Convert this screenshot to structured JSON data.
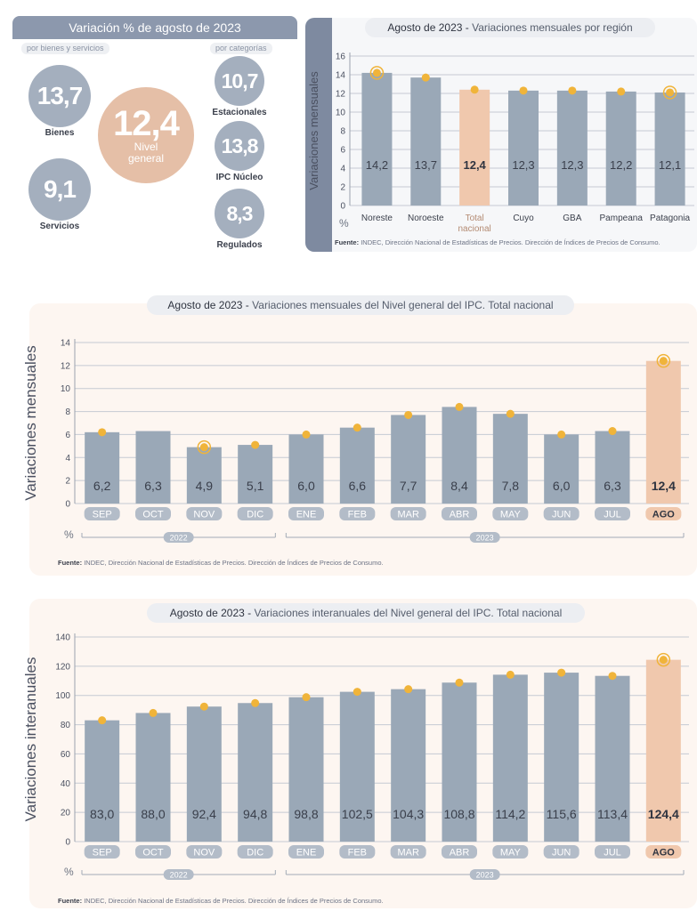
{
  "summary": {
    "title": "Variación % de agosto de 2023",
    "left_pill": "por bienes y servicios",
    "right_pill": "por categorías",
    "bienes": {
      "value": "13,7",
      "label": "Bienes"
    },
    "servicios": {
      "value": "9,1",
      "label": "Servicios"
    },
    "nivel_general": {
      "value": "12,4",
      "label_line1": "Nivel",
      "label_line2": "general"
    },
    "estacionales": {
      "value": "10,7",
      "label": "Estacionales"
    },
    "ipc_nucleo": {
      "value": "13,8",
      "label": "IPC Núcleo"
    },
    "regulados": {
      "value": "8,3",
      "label": "Regulados"
    },
    "colors": {
      "grey_circle": "#a4afbe",
      "highlight_circle": "#e5bfa7"
    }
  },
  "source_text": {
    "label": "Fuente:",
    "text": "INDEC, Dirección Nacional de Estadísticas de Precios. Dirección de Índices de Precios de Consumo."
  },
  "chart_data": [
    {
      "type": "bar",
      "title_bold": "Agosto de 2023 -",
      "title": "Variaciones mensuales por región",
      "ylabel": "Variaciones  mensuales",
      "unit": "%",
      "ylim": [
        0,
        16
      ],
      "yticks": [
        0,
        2,
        4,
        6,
        8,
        10,
        12,
        14,
        16
      ],
      "categories": [
        "Noreste",
        "Noroeste",
        "Total nacional",
        "Cuyo",
        "GBA",
        "Pampeana",
        "Patagonia"
      ],
      "values": [
        14.2,
        13.7,
        12.4,
        12.3,
        12.3,
        12.2,
        12.1
      ],
      "value_labels": [
        "14,2",
        "13,7",
        "12,4",
        "12,3",
        "12,3",
        "12,2",
        "12,1"
      ],
      "highlight_index": 2,
      "ringed_indices": [
        0,
        6
      ],
      "grid": true,
      "colors": {
        "bar": "#9aa8b7",
        "highlight": "#f0c8ad",
        "marker": "#f0b43a"
      }
    },
    {
      "type": "bar",
      "title_bold": "Agosto de 2023 -",
      "title": "Variaciones mensuales del Nivel general del IPC. Total nacional",
      "ylabel": "Variaciones mensuales",
      "unit": "%",
      "ylim": [
        0,
        14
      ],
      "yticks": [
        0,
        2,
        4,
        6,
        8,
        10,
        12,
        14
      ],
      "categories": [
        "SEP",
        "OCT",
        "NOV",
        "DIC",
        "ENE",
        "FEB",
        "MAR",
        "ABR",
        "MAY",
        "JUN",
        "JUL",
        "AGO"
      ],
      "values": [
        6.2,
        6.3,
        4.9,
        5.1,
        6.0,
        6.6,
        7.7,
        8.4,
        7.8,
        6.0,
        6.3,
        12.4
      ],
      "value_labels": [
        "6,2",
        "6,3",
        "4,9",
        "5,1",
        "6,0",
        "6,6",
        "7,7",
        "8,4",
        "7,8",
        "6,0",
        "6,3",
        "12,4"
      ],
      "year_groups": [
        {
          "label": "2022",
          "from": 0,
          "to": 3
        },
        {
          "label": "2023",
          "from": 4,
          "to": 11
        }
      ],
      "highlight_index": 11,
      "ringed_indices": [
        2,
        11
      ],
      "marker_indices": [
        0,
        2,
        3,
        4,
        5,
        6,
        7,
        8,
        9,
        10,
        11
      ],
      "grid": true,
      "colors": {
        "bar": "#9aa8b7",
        "highlight": "#f0c8ad",
        "marker": "#f0b43a"
      }
    },
    {
      "type": "bar",
      "title_bold": "Agosto de 2023 -",
      "title": "Variaciones interanuales del Nivel general del IPC. Total nacional",
      "ylabel": "Variaciones interanuales",
      "unit": "%",
      "ylim": [
        0,
        140
      ],
      "yticks": [
        0,
        20,
        40,
        60,
        80,
        100,
        120,
        140
      ],
      "categories": [
        "SEP",
        "OCT",
        "NOV",
        "DIC",
        "ENE",
        "FEB",
        "MAR",
        "ABR",
        "MAY",
        "JUN",
        "JUL",
        "AGO"
      ],
      "values": [
        83.0,
        88.0,
        92.4,
        94.8,
        98.8,
        102.5,
        104.3,
        108.8,
        114.2,
        115.6,
        113.4,
        124.4
      ],
      "value_labels": [
        "83,0",
        "88,0",
        "92,4",
        "94,8",
        "98,8",
        "102,5",
        "104,3",
        "108,8",
        "114,2",
        "115,6",
        "113,4",
        "124,4"
      ],
      "year_groups": [
        {
          "label": "2022",
          "from": 0,
          "to": 3
        },
        {
          "label": "2023",
          "from": 4,
          "to": 11
        }
      ],
      "highlight_index": 11,
      "ringed_indices": [
        11
      ],
      "marker_indices": [
        0,
        1,
        2,
        3,
        4,
        5,
        6,
        7,
        8,
        9,
        10,
        11
      ],
      "grid": true,
      "colors": {
        "bar": "#9aa8b7",
        "highlight": "#f0c8ad",
        "marker": "#f0b43a"
      }
    }
  ]
}
